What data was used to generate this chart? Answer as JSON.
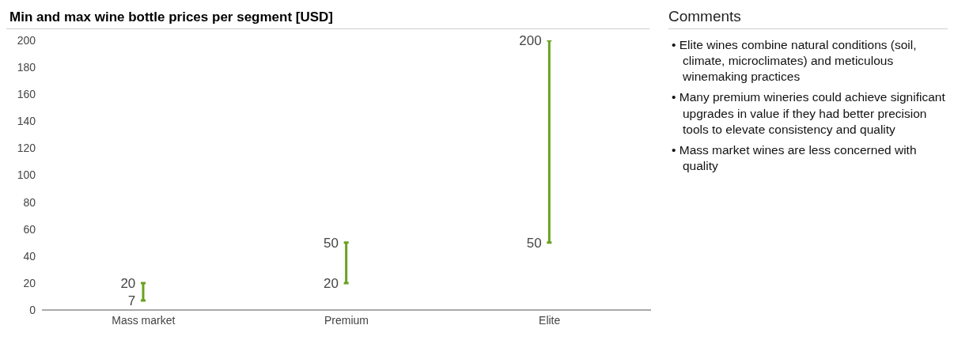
{
  "chart_data": {
    "type": "bar",
    "title": "Min and max wine bottle prices per segment [USD]",
    "categories": [
      "Mass market",
      "Premium",
      "Elite"
    ],
    "base": [
      7,
      20,
      50
    ],
    "values": [
      13,
      30,
      150
    ],
    "color": "#6aa121",
    "ylim": [
      0,
      200
    ],
    "yticks": [
      0,
      20,
      40,
      60,
      80,
      100,
      120,
      140,
      160,
      180,
      200
    ],
    "grid": false,
    "legend": false,
    "annotations": [
      {
        "text": "7",
        "x": "Mass market",
        "y": 7
      },
      {
        "text": "20",
        "x": "Mass market",
        "y": 20
      },
      {
        "text": "20",
        "x": "Premium",
        "y": 20
      },
      {
        "text": "50",
        "x": "Premium",
        "y": 50
      },
      {
        "text": "50",
        "x": "Elite",
        "y": 50
      },
      {
        "text": "200",
        "x": "Elite",
        "y": 200
      },
      "Comments",
      "• Elite wines combine natural conditions (soil, climate, microclimates) and meticulous winemaking practices",
      "• Many premium wineries could achieve significant upgrades in value if they had better precision tools to elevate consistency and quality",
      "• Mass market wines are less concerned with quality"
    ]
  }
}
